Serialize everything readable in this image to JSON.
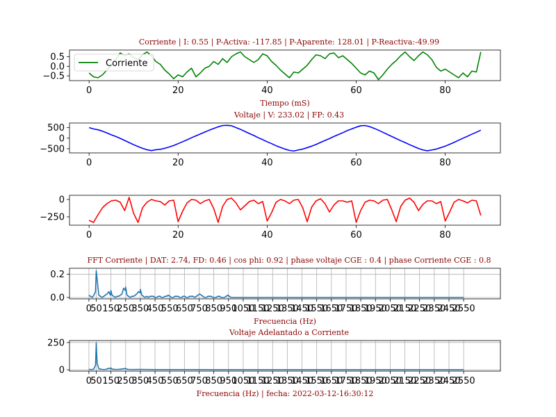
{
  "colors": {
    "corriente": "#008000",
    "voltaje": "#0000ff",
    "tercera": "#ff0000",
    "fft": "#1f77b4",
    "title_text": "#8b0000",
    "grid": "#b0b0b0"
  },
  "chart_data": [
    {
      "id": "corriente",
      "type": "line",
      "title": "Corriente | I: 0.55  |  P-Activa: -117.85 | P-Aparente: 128.01  |  P-Reactiva:-49.99",
      "xlabel": "Tiempo (mS)",
      "ylabel": "",
      "xlim": [
        -4.4,
        92.4
      ],
      "ylim": [
        -0.75,
        0.85
      ],
      "xticks": [
        0,
        20,
        40,
        60,
        80
      ],
      "yticks": [
        0.5,
        0.0,
        -0.5
      ],
      "ytick_labels": [
        "0.5",
        "0.0",
        "−0.5"
      ],
      "legend": {
        "label": "Corriente",
        "position": "upper-left"
      },
      "grid": false,
      "series": [
        {
          "name": "Corriente",
          "x": [
            0,
            1,
            2,
            3,
            4,
            5,
            6,
            7,
            8,
            9,
            10,
            11,
            12,
            13,
            14,
            15,
            16,
            17,
            18,
            19,
            20,
            21,
            22,
            23,
            24,
            25,
            26,
            27,
            28,
            29,
            30,
            31,
            32,
            33,
            34,
            35,
            36,
            37,
            38,
            39,
            40,
            41,
            42,
            43,
            44,
            45,
            46,
            47,
            48,
            49,
            50,
            51,
            52,
            53,
            54,
            55,
            56,
            57,
            58,
            59,
            60,
            61,
            62,
            63,
            64,
            65,
            66,
            67,
            68,
            69,
            70,
            71,
            72,
            73,
            74,
            75,
            76,
            77,
            78,
            79,
            80,
            81,
            82,
            83,
            84,
            85,
            86,
            87,
            88
          ],
          "y": [
            -0.35,
            -0.55,
            -0.6,
            -0.45,
            -0.2,
            0.05,
            0.35,
            0.7,
            0.55,
            0.65,
            0.45,
            0.35,
            0.6,
            0.75,
            0.55,
            0.25,
            0.1,
            -0.2,
            -0.4,
            -0.65,
            -0.45,
            -0.55,
            -0.3,
            -0.1,
            -0.55,
            -0.35,
            -0.1,
            0.0,
            0.25,
            0.1,
            0.4,
            0.2,
            0.5,
            0.65,
            0.75,
            0.5,
            0.35,
            0.2,
            0.35,
            0.65,
            0.55,
            0.25,
            0.05,
            -0.2,
            -0.4,
            -0.6,
            -0.3,
            -0.35,
            -0.15,
            0.05,
            0.35,
            0.6,
            0.55,
            0.4,
            0.65,
            0.7,
            0.45,
            0.55,
            0.35,
            0.15,
            -0.1,
            -0.35,
            -0.45,
            -0.25,
            -0.35,
            -0.7,
            -0.45,
            -0.15,
            0.1,
            0.3,
            0.55,
            0.75,
            0.5,
            0.3,
            0.55,
            0.75,
            0.6,
            0.35,
            -0.05,
            -0.25,
            -0.15,
            -0.3,
            -0.45,
            -0.6,
            -0.35,
            -0.55,
            -0.25,
            -0.3,
            0.75
          ]
        }
      ]
    },
    {
      "id": "voltaje",
      "type": "line",
      "title": "Voltaje | V: 233.02 |  FP: 0.43",
      "xlabel": "",
      "ylabel": "",
      "xlim": [
        -4.4,
        92.4
      ],
      "ylim": [
        -700,
        720
      ],
      "xticks": [
        0,
        20,
        40,
        60,
        80
      ],
      "yticks": [
        500,
        0,
        -500
      ],
      "ytick_labels": [
        "500",
        "0",
        "−500"
      ],
      "grid": false,
      "series": [
        {
          "name": "",
          "x": [
            0,
            1,
            2,
            3,
            4,
            5,
            6,
            7,
            8,
            9,
            10,
            11,
            12,
            13,
            14,
            15,
            16,
            17,
            18,
            19,
            20,
            21,
            22,
            23,
            24,
            25,
            26,
            27,
            28,
            29,
            30,
            31,
            32,
            33,
            34,
            35,
            36,
            37,
            38,
            39,
            40,
            41,
            42,
            43,
            44,
            45,
            46,
            47,
            48,
            49,
            50,
            51,
            52,
            53,
            54,
            55,
            56,
            57,
            58,
            59,
            60,
            61,
            62,
            63,
            64,
            65,
            66,
            67,
            68,
            69,
            70,
            71,
            72,
            73,
            74,
            75,
            76,
            77,
            78,
            79,
            80,
            81,
            82,
            83,
            84,
            85,
            86,
            87,
            88
          ],
          "y": [
            500,
            440,
            400,
            330,
            250,
            160,
            80,
            -10,
            -110,
            -210,
            -310,
            -400,
            -480,
            -550,
            -590,
            -550,
            -530,
            -480,
            -420,
            -350,
            -260,
            -170,
            -80,
            20,
            110,
            200,
            290,
            380,
            460,
            540,
            600,
            610,
            590,
            500,
            420,
            320,
            220,
            130,
            20,
            -70,
            -170,
            -260,
            -360,
            -440,
            -520,
            -580,
            -610,
            -560,
            -520,
            -450,
            -380,
            -300,
            -200,
            -110,
            -20,
            80,
            170,
            260,
            360,
            440,
            520,
            590,
            600,
            550,
            470,
            380,
            280,
            180,
            80,
            -20,
            -120,
            -210,
            -310,
            -400,
            -490,
            -560,
            -600,
            -560,
            -520,
            -450,
            -380,
            -290,
            -200,
            -100,
            0,
            90,
            190,
            280,
            380
          ]
        }
      ]
    },
    {
      "id": "tercera",
      "type": "line",
      "title": "",
      "xlabel": "",
      "ylabel": "",
      "xlim": [
        -4.4,
        92.4
      ],
      "ylim": [
        -370,
        60
      ],
      "xticks": [
        0,
        20,
        40,
        60,
        80
      ],
      "yticks": [
        0,
        -250
      ],
      "ytick_labels": [
        "0",
        "−250"
      ],
      "grid": false,
      "series": [
        {
          "name": "",
          "x": [
            0,
            1,
            2,
            3,
            4,
            5,
            6,
            7,
            8,
            9,
            10,
            11,
            12,
            13,
            14,
            15,
            16,
            17,
            18,
            19,
            20,
            21,
            22,
            23,
            24,
            25,
            26,
            27,
            28,
            29,
            30,
            31,
            32,
            33,
            34,
            35,
            36,
            37,
            38,
            39,
            40,
            41,
            42,
            43,
            44,
            45,
            46,
            47,
            48,
            49,
            50,
            51,
            52,
            53,
            54,
            55,
            56,
            57,
            58,
            59,
            60,
            61,
            62,
            63,
            64,
            65,
            66,
            67,
            68,
            69,
            70,
            71,
            72,
            73,
            74,
            75,
            76,
            77,
            78,
            79,
            80,
            81,
            82,
            83,
            84,
            85,
            86,
            87,
            88
          ],
          "y": [
            -300,
            -330,
            -220,
            -120,
            -60,
            -20,
            -10,
            -40,
            -160,
            30,
            -200,
            -330,
            -120,
            -40,
            0,
            -20,
            -30,
            -80,
            -20,
            -10,
            -320,
            -170,
            -50,
            0,
            -10,
            -60,
            -20,
            0,
            -130,
            -330,
            -100,
            0,
            20,
            -50,
            -150,
            -90,
            -30,
            -10,
            -60,
            -30,
            -310,
            -190,
            -40,
            0,
            -20,
            -60,
            -10,
            0,
            -120,
            -320,
            -110,
            -20,
            10,
            -60,
            -180,
            -80,
            -20,
            -20,
            -40,
            -20,
            -330,
            -160,
            -40,
            -10,
            -20,
            -60,
            -10,
            0,
            -150,
            -320,
            -100,
            -10,
            20,
            -40,
            -160,
            -70,
            -20,
            -20,
            -60,
            -30,
            -310,
            -180,
            -40,
            0,
            -20,
            -50,
            -10,
            -20,
            -230
          ]
        }
      ]
    },
    {
      "id": "fft_corriente",
      "type": "line",
      "title": "FFT Corriente | DAT: 2.74, FD: 0.46 |   cos phi: 0.92 | phase voltaje CGE : 0.4 | phase Corriente CGE : 0.8",
      "xlabel": "Frecuencia (Hz)",
      "ylabel": "",
      "xlim": [
        -132,
        2800
      ],
      "ylim": [
        -0.012,
        0.252
      ],
      "xticks": [
        0,
        50,
        150,
        250,
        350,
        450,
        550,
        650,
        750,
        850,
        950,
        1050,
        1150,
        1250,
        1350,
        1450,
        1550,
        1650,
        1750,
        1850,
        1950,
        2050,
        2150,
        2250,
        2350,
        2450,
        2550
      ],
      "xtick_labels": [
        "0",
        "50",
        "150",
        "250",
        "350",
        "450",
        "550",
        "650",
        "750",
        "850",
        "950",
        "1050",
        "1150",
        "1250",
        "1350",
        "1450",
        "1550",
        "1650",
        "1750",
        "1850",
        "1950",
        "2050",
        "2150",
        "2250",
        "2350",
        "2450",
        "2550"
      ],
      "yticks": [
        0.0,
        0.2
      ],
      "ytick_labels": [
        "0.0",
        "0.2"
      ],
      "grid": true,
      "series": [
        {
          "name": "",
          "x": [
            0,
            11,
            22,
            34,
            45,
            50,
            56,
            67,
            79,
            90,
            101,
            112,
            124,
            135,
            146,
            150,
            157,
            169,
            180,
            191,
            202,
            214,
            225,
            236,
            248,
            250,
            259,
            270,
            281,
            292,
            304,
            315,
            326,
            337,
            349,
            350,
            360,
            371,
            382,
            394,
            405,
            416,
            427,
            439,
            450,
            461,
            472,
            484,
            495,
            506,
            517,
            529,
            540,
            551,
            562,
            574,
            585,
            596,
            607,
            619,
            630,
            641,
            652,
            664,
            675,
            686,
            697,
            709,
            720,
            731,
            742,
            754,
            765,
            776,
            787,
            799,
            810,
            821,
            832,
            844,
            855,
            866,
            877,
            889,
            900,
            911,
            922,
            934,
            945,
            956,
            967,
            979,
            990,
            1150,
            1350,
            1550,
            1750,
            1950,
            2150,
            2350,
            2550
          ],
          "y": [
            0.02,
            0.01,
            0.0,
            0.02,
            0.05,
            0.23,
            0.16,
            0.02,
            0.01,
            0.0,
            0.01,
            0.02,
            0.03,
            0.05,
            0.02,
            0.06,
            0.02,
            0.01,
            0.0,
            0.01,
            0.01,
            0.02,
            0.03,
            0.08,
            0.06,
            0.09,
            0.02,
            0.01,
            0.0,
            0.01,
            0.01,
            0.02,
            0.03,
            0.05,
            0.04,
            0.07,
            0.02,
            0.01,
            0.0,
            0.01,
            0.0,
            0.01,
            0.01,
            0.01,
            0.0,
            0.0,
            0.01,
            0.01,
            0.0,
            0.0,
            0.01,
            0.01,
            0.02,
            0.01,
            0.0,
            0.0,
            0.01,
            0.01,
            0.01,
            0.0,
            0.0,
            0.01,
            0.01,
            0.0,
            0.0,
            0.01,
            0.01,
            0.01,
            0.0,
            0.01,
            0.02,
            0.03,
            0.02,
            0.01,
            0.0,
            0.0,
            0.01,
            0.01,
            0.01,
            0.0,
            0.0,
            0.0,
            0.01,
            0.01,
            0.0,
            0.0,
            0.0,
            0.01,
            0.02,
            0.01,
            0.0,
            0.0,
            0.0,
            0.0,
            0.0,
            0.0,
            0.0,
            0.0,
            0.0,
            0.0,
            0.0
          ]
        }
      ]
    },
    {
      "id": "fft_voltaje",
      "type": "line",
      "title": "Voltaje Adelantado a Corriente",
      "xlabel": "Frecuencia (Hz)  |    fecha: 2022-03-12-16:30:12",
      "ylabel": "",
      "xlim": [
        -132,
        2800
      ],
      "ylim": [
        -12,
        268
      ],
      "xticks": [
        0,
        50,
        150,
        250,
        350,
        450,
        550,
        650,
        750,
        850,
        950,
        1050,
        1150,
        1250,
        1350,
        1450,
        1550,
        1650,
        1750,
        1850,
        1950,
        2050,
        2150,
        2250,
        2350,
        2450,
        2550
      ],
      "xtick_labels": [
        "0",
        "50",
        "150",
        "250",
        "350",
        "450",
        "550",
        "650",
        "750",
        "850",
        "950",
        "1050",
        "1150",
        "1250",
        "1350",
        "1450",
        "1550",
        "1650",
        "1750",
        "1850",
        "1950",
        "2050",
        "2150",
        "2250",
        "2350",
        "2450",
        "2550"
      ],
      "yticks": [
        0,
        250
      ],
      "ytick_labels": [
        "0",
        "250"
      ],
      "grid": true,
      "series": [
        {
          "name": "",
          "x": [
            0,
            11,
            22,
            34,
            45,
            50,
            56,
            67,
            79,
            90,
            101,
            112,
            124,
            135,
            146,
            150,
            157,
            169,
            180,
            191,
            202,
            214,
            225,
            236,
            248,
            250,
            259,
            270,
            300,
            350,
            400,
            450,
            550,
            650,
            750,
            850,
            950,
            1150,
            1350,
            1550,
            1750,
            1950,
            2150,
            2350,
            2550
          ],
          "y": [
            5,
            3,
            2,
            10,
            40,
            245,
            60,
            12,
            6,
            4,
            3,
            4,
            8,
            15,
            10,
            18,
            7,
            5,
            3,
            4,
            4,
            6,
            8,
            10,
            12,
            12,
            6,
            4,
            3,
            4,
            3,
            2,
            2,
            2,
            2,
            1,
            1,
            1,
            1,
            1,
            1,
            1,
            1,
            1,
            1
          ]
        }
      ]
    }
  ]
}
